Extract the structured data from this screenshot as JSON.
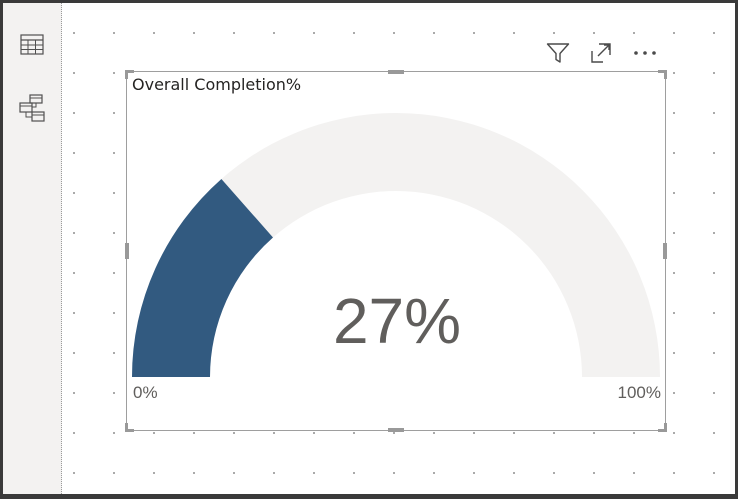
{
  "visual": {
    "title": "Overall Completion%"
  },
  "gauge": {
    "value": 27,
    "min": 0,
    "max": 100,
    "value_label": "27%",
    "min_label": "0%",
    "max_label": "100%",
    "fill_color": "#325a80",
    "track_color": "#f3f2f1"
  },
  "left_pane": {
    "icons": [
      "table-view-icon",
      "model-view-icon"
    ]
  },
  "toolbar": {
    "icons": [
      "filter-icon",
      "focus-mode-icon",
      "more-options-icon"
    ]
  }
}
